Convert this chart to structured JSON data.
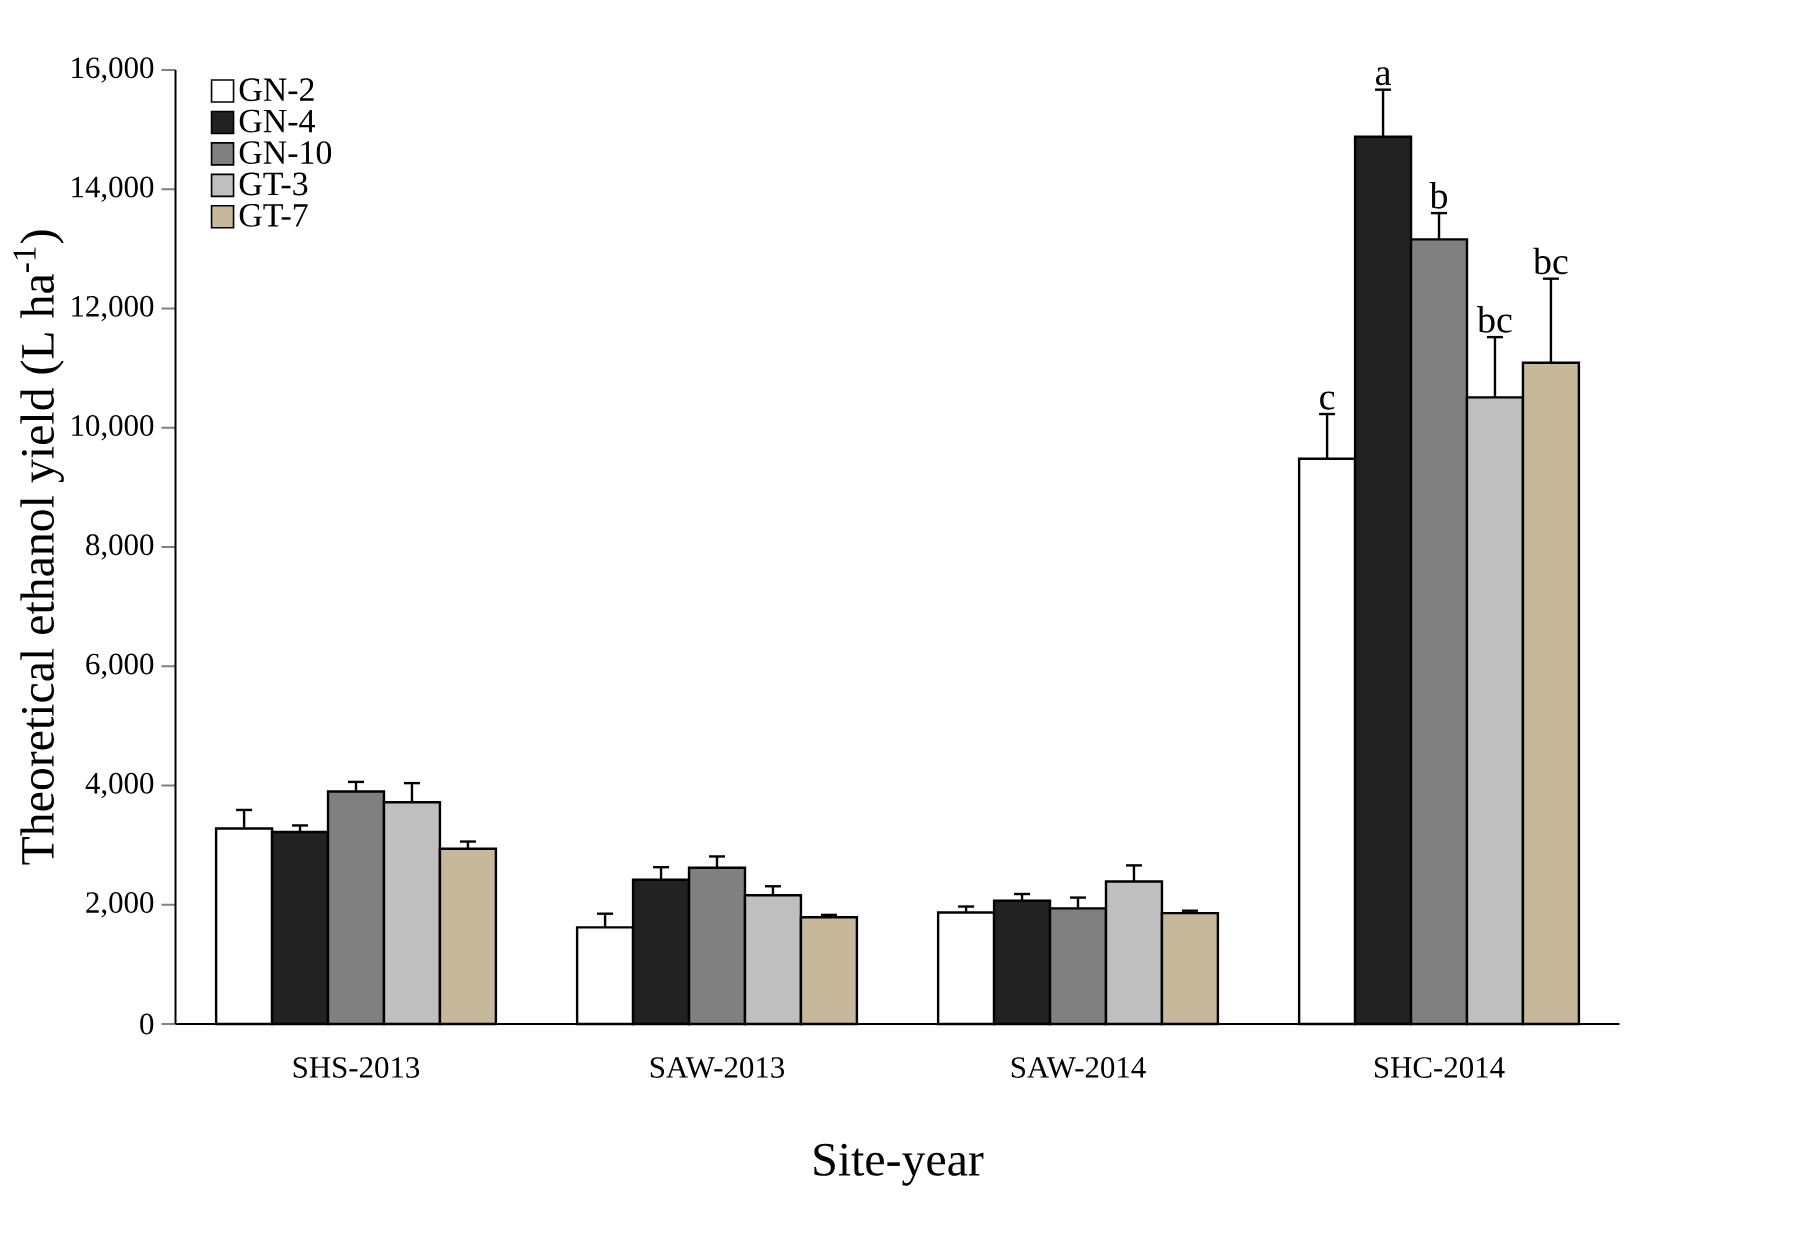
{
  "chart_data": {
    "type": "bar",
    "xlabel": "Site-year",
    "ylabel": "Theoretical ethanol yield (L ha$^{-1}$)",
    "categories": [
      "SHS-2013",
      "SAW-2013",
      "SAW-2014",
      "SHC-2014"
    ],
    "series": [
      {
        "name": "GN-2",
        "color": "#ffffff",
        "values": [
          3280,
          1620,
          1870,
          9480
        ],
        "errors": [
          [
            3280,
            3590
          ],
          [
            1620,
            1850
          ],
          [
            1870,
            1970
          ],
          [
            9480,
            10230
          ]
        ]
      },
      {
        "name": "GN-4",
        "color": "#222222",
        "values": [
          3220,
          2420,
          2070,
          14880
        ],
        "errors": [
          [
            3220,
            3330
          ],
          [
            2420,
            2630
          ],
          [
            2070,
            2180
          ],
          [
            14880,
            15670
          ]
        ]
      },
      {
        "name": "GN-10",
        "color": "#808080",
        "values": [
          3900,
          2620,
          1940,
          13160
        ],
        "errors": [
          [
            3900,
            4060
          ],
          [
            2620,
            2810
          ],
          [
            1940,
            2120
          ],
          [
            13160,
            13600
          ]
        ]
      },
      {
        "name": "GT-3",
        "color": "#bfbfbf",
        "values": [
          3720,
          2160,
          2390,
          10510
        ],
        "errors": [
          [
            3720,
            4040
          ],
          [
            2160,
            2310
          ],
          [
            2390,
            2660
          ],
          [
            10510,
            11520
          ]
        ]
      },
      {
        "name": "GT-7",
        "color": "#c8b89a",
        "values": [
          2940,
          1790,
          1860,
          11090
        ],
        "errors": [
          [
            2940,
            3060
          ],
          [
            1790,
            1830
          ],
          [
            1860,
            1900
          ],
          [
            11090,
            12500
          ]
        ]
      }
    ],
    "ylim": [
      0,
      16000
    ],
    "yticks": [
      0,
      {
        "value": 2000,
        "label": "2,000"
      },
      {
        "value": 4000,
        "label": "4,000"
      },
      {
        "value": 6000,
        "label": "6,000"
      },
      {
        "value": 8000,
        "label": "8,000"
      },
      {
        "value": 10000,
        "label": "10,000"
      },
      {
        "value": 12000,
        "label": "12,000"
      },
      {
        "value": 14000,
        "label": "14,000"
      },
      {
        "value": 16000,
        "label": "16,000"
      }
    ],
    "annotations": [
      "c",
      "a",
      "b",
      "bc",
      "bc"
    ],
    "legend": "top left",
    "grid": false
  }
}
